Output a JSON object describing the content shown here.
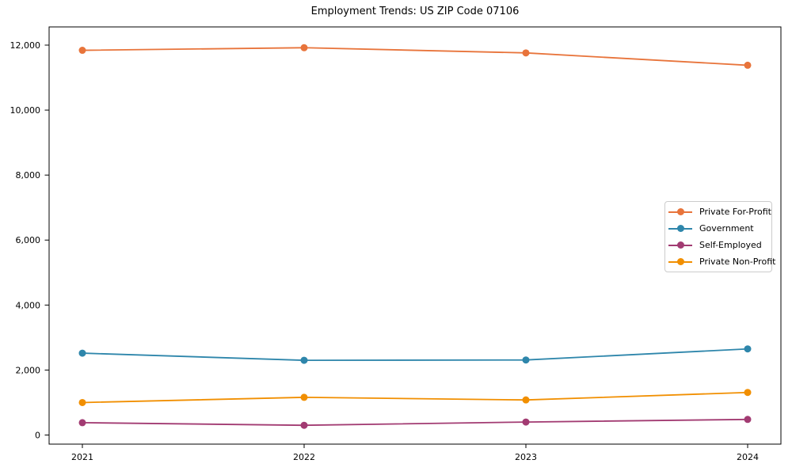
{
  "chart_data": {
    "type": "line",
    "title": "Employment Trends: US ZIP Code 07106",
    "x_categories": [
      "2021",
      "2022",
      "2023",
      "2024"
    ],
    "series": [
      {
        "name": "Private For-Profit",
        "color": "#E8743B",
        "values": [
          11840,
          11920,
          11760,
          11380
        ]
      },
      {
        "name": "Government",
        "color": "#2E86AB",
        "values": [
          2520,
          2300,
          2310,
          2650
        ]
      },
      {
        "name": "Self-Employed",
        "color": "#A23B72",
        "values": [
          380,
          300,
          400,
          480
        ]
      },
      {
        "name": "Private Non-Profit",
        "color": "#F18F01",
        "values": [
          1000,
          1160,
          1080,
          1310
        ]
      }
    ],
    "yticks": [
      0,
      2000,
      4000,
      6000,
      8000,
      10000,
      12000
    ],
    "ytick_labels": [
      "0",
      "2,000",
      "4,000",
      "6,000",
      "8,000",
      "10,000",
      "12,000"
    ],
    "ylim": [
      -280,
      12560
    ],
    "xlabel": "",
    "ylabel": "",
    "grid": false,
    "legend": {
      "position": "right-center",
      "border_color": "#cccccc",
      "background": "#ffffff"
    },
    "axis_color": "#000000",
    "text_color": "#000000"
  }
}
